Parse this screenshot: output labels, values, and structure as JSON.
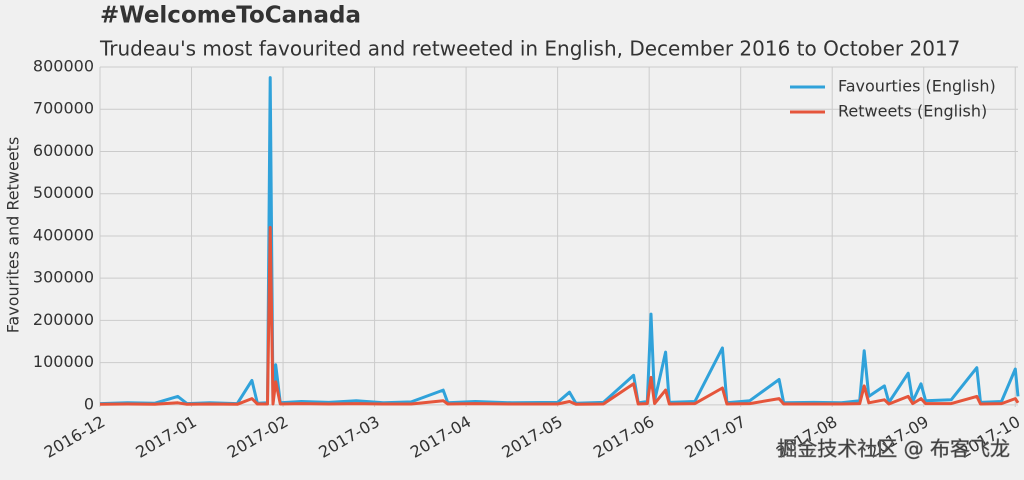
{
  "chart_data": {
    "type": "line",
    "title": "#WelcomeToCanada",
    "subtitle": "Trudeau's most favourited and retweeted in English, December 2016 to October 2017",
    "y_label": "Favourites and Retweets",
    "watermark": "掘金技术社区 @ 布客飞龙",
    "x": [
      0,
      0.3,
      0.6,
      0.85,
      0.95,
      1.2,
      1.5,
      1.66,
      1.72,
      1.83,
      1.86,
      1.89,
      1.92,
      1.97,
      2.2,
      2.5,
      2.8,
      3.1,
      3.4,
      3.75,
      3.8,
      4.1,
      4.5,
      5.0,
      5.13,
      5.2,
      5.5,
      5.83,
      5.88,
      5.98,
      6.02,
      6.06,
      6.18,
      6.22,
      6.5,
      6.8,
      6.85,
      7.1,
      7.42,
      7.47,
      7.8,
      8.1,
      8.3,
      8.35,
      8.4,
      8.57,
      8.62,
      8.83,
      8.88,
      8.97,
      9.02,
      9.3,
      9.58,
      9.62,
      9.85,
      10.0,
      10.03
    ],
    "series": [
      {
        "name": "Favourties (English)",
        "color": "#30a2da",
        "values": [
          3000,
          5000,
          4000,
          20000,
          3000,
          5000,
          3000,
          58000,
          4000,
          5000,
          775000,
          6000,
          95000,
          5000,
          8000,
          6000,
          10000,
          5000,
          7000,
          35000,
          5000,
          8000,
          5000,
          6000,
          30000,
          4000,
          6000,
          70000,
          5000,
          8000,
          215000,
          10000,
          125000,
          6000,
          8000,
          135000,
          5000,
          10000,
          60000,
          5000,
          6000,
          5000,
          10000,
          128000,
          20000,
          45000,
          6000,
          75000,
          8000,
          50000,
          10000,
          12000,
          88000,
          6000,
          8000,
          85000,
          20000
        ]
      },
      {
        "name": "Retweets (English)",
        "color": "#e5553b",
        "values": [
          1500,
          2000,
          1500,
          5000,
          1500,
          2000,
          1500,
          15000,
          2000,
          2000,
          420000,
          2000,
          55000,
          2000,
          3000,
          2000,
          3000,
          2000,
          2000,
          10000,
          2000,
          3000,
          2000,
          2000,
          8000,
          1500,
          2000,
          50000,
          2000,
          3000,
          65000,
          3000,
          35000,
          2000,
          3000,
          40000,
          2000,
          3000,
          15000,
          2000,
          2000,
          2000,
          3000,
          45000,
          5000,
          12000,
          2000,
          20000,
          3000,
          15000,
          3000,
          3000,
          20000,
          2000,
          3000,
          15000,
          5000
        ]
      }
    ],
    "xlim": [
      0,
      10.03
    ],
    "xticks": [
      {
        "value": 0,
        "label": "2016-12"
      },
      {
        "value": 1,
        "label": "2017-01"
      },
      {
        "value": 2,
        "label": "2017-02"
      },
      {
        "value": 3,
        "label": "2017-03"
      },
      {
        "value": 4,
        "label": "2017-04"
      },
      {
        "value": 5,
        "label": "2017-05"
      },
      {
        "value": 6,
        "label": "2017-06"
      },
      {
        "value": 7,
        "label": "2017-07"
      },
      {
        "value": 8,
        "label": "2017-08"
      },
      {
        "value": 9,
        "label": "2017-09"
      },
      {
        "value": 10,
        "label": "2017-10"
      }
    ],
    "ylim": [
      -5000,
      800000
    ],
    "yticks": [
      0,
      100000,
      200000,
      300000,
      400000,
      500000,
      600000,
      700000,
      800000
    ],
    "grid": true,
    "legend": "upper right"
  }
}
